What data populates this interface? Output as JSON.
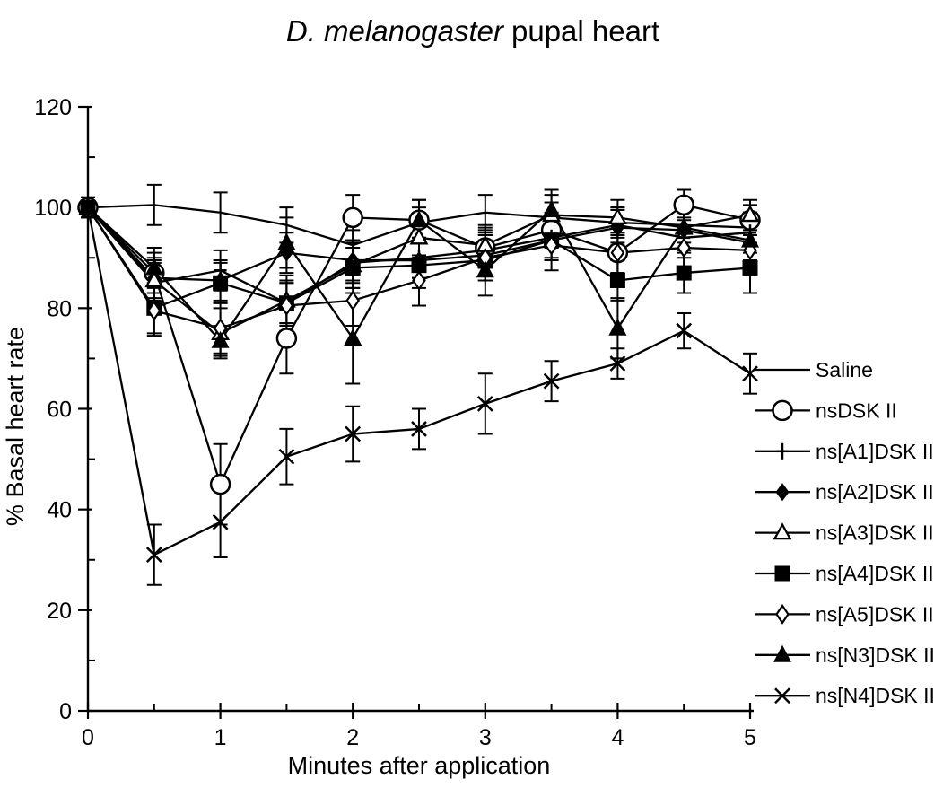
{
  "title": {
    "italic": "D. melanogaster",
    "regular": "pupal heart"
  },
  "chart_data": {
    "type": "line",
    "title": "D. melanogaster pupal heart",
    "xlabel": "Minutes after application",
    "ylabel": "% Basal heart rate",
    "xlim": [
      0,
      5
    ],
    "ylim": [
      0,
      120
    ],
    "xticks": [
      0,
      1,
      2,
      3,
      4,
      5
    ],
    "yticks": [
      0,
      20,
      40,
      60,
      80,
      100,
      120
    ],
    "x_minor_step": 0.5,
    "y_minor_step": 10,
    "grid": false,
    "legend_position": "right",
    "color": "#000000",
    "x": [
      0,
      0.5,
      1,
      1.5,
      2,
      2.5,
      3,
      3.5,
      4,
      4.5,
      5
    ],
    "series": [
      {
        "name": "Saline",
        "marker": "none",
        "values": [
          100,
          100.5,
          99,
          96.5,
          92.5,
          97,
          99,
          98,
          97,
          96.5,
          96
        ],
        "errors": [
          2,
          4,
          4,
          3.5,
          3,
          3,
          3.5,
          3,
          3,
          3.5,
          3
        ]
      },
      {
        "name": "nsDSK II",
        "marker": "circle-open",
        "values": [
          100,
          87,
          45,
          74,
          98,
          97.5,
          92,
          95.5,
          91,
          100.5,
          97.5
        ],
        "errors": [
          2,
          4,
          8,
          7,
          4.5,
          4,
          4,
          3.5,
          4,
          3,
          3
        ]
      },
      {
        "name": "ns[A1]DSK II",
        "marker": "plus",
        "values": [
          100,
          85,
          87.5,
          81,
          89,
          90,
          91.5,
          94,
          96.5,
          94,
          95
        ],
        "errors": [
          2,
          4,
          4,
          4,
          4,
          4,
          3.5,
          4,
          3.5,
          4,
          4
        ]
      },
      {
        "name": "ns[A2]DSK II",
        "marker": "diamond-filled",
        "values": [
          100,
          86,
          85.5,
          91,
          89.5,
          89.5,
          90.5,
          93.5,
          96,
          95.5,
          93
        ],
        "errors": [
          2,
          4,
          4,
          4,
          4,
          3.5,
          4,
          4,
          3.5,
          4,
          4
        ]
      },
      {
        "name": "ns[A3]DSK II",
        "marker": "triangle-open",
        "values": [
          100,
          85.5,
          75,
          81.5,
          88.5,
          94,
          92.5,
          98.5,
          98,
          96,
          98.5
        ],
        "errors": [
          2,
          4,
          5,
          5,
          4.5,
          4,
          4,
          4,
          3.5,
          4,
          3
        ]
      },
      {
        "name": "ns[A4]DSK II",
        "marker": "square-filled",
        "values": [
          100,
          80,
          85,
          81,
          88,
          88.5,
          89.5,
          93.5,
          85.5,
          87,
          88
        ],
        "errors": [
          2,
          5,
          4,
          4,
          4,
          4.5,
          4,
          4,
          4,
          4,
          5
        ]
      },
      {
        "name": "ns[A5]DSK II",
        "marker": "diamond-open",
        "values": [
          100,
          79.5,
          76,
          80.5,
          81.5,
          85.5,
          90,
          92.5,
          91,
          92,
          91.5
        ],
        "errors": [
          2,
          5,
          5,
          5,
          5,
          5,
          4.5,
          5,
          4,
          4,
          4
        ]
      },
      {
        "name": "ns[N3]DSK II",
        "marker": "triangle-filled",
        "values": [
          100,
          88,
          73.5,
          93,
          74,
          97.5,
          87.5,
          99.5,
          76,
          96,
          93.5
        ],
        "errors": [
          2,
          4,
          3,
          5,
          9,
          4,
          5,
          4,
          6,
          4,
          4
        ]
      },
      {
        "name": "ns[N4]DSK II",
        "marker": "x",
        "values": [
          100,
          31,
          37.5,
          50.5,
          55,
          56,
          61,
          65.5,
          69,
          75.5,
          67
        ],
        "errors": [
          2,
          6,
          7,
          5.5,
          5.5,
          4,
          6,
          4,
          3,
          3.5,
          4
        ]
      }
    ]
  }
}
